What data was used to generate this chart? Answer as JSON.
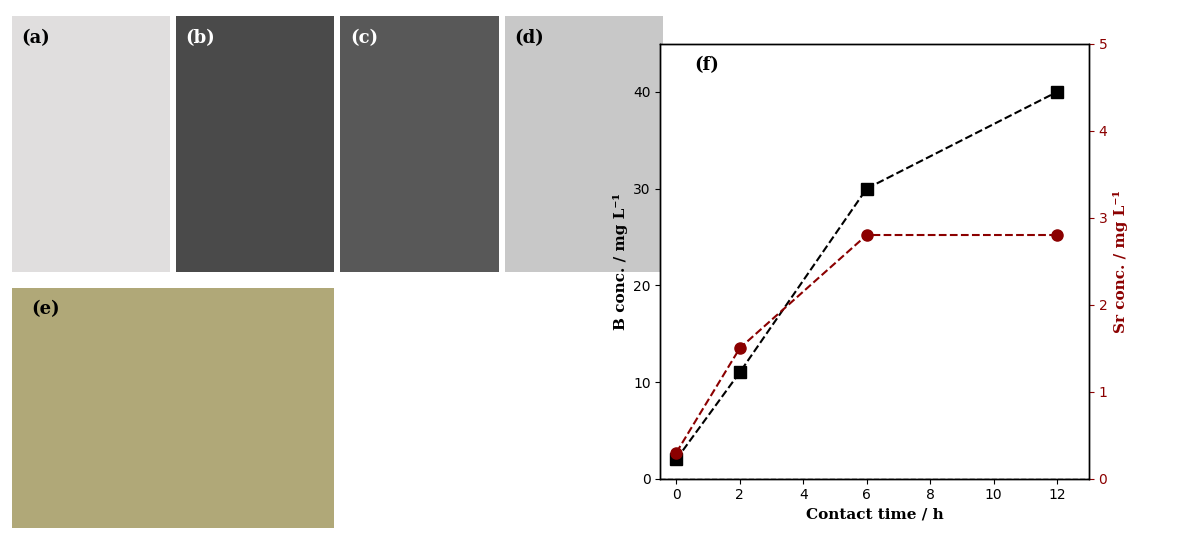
{
  "contact_time": [
    0,
    2,
    6,
    12
  ],
  "B_conc": [
    2.0,
    11.0,
    30.0,
    40.0
  ],
  "Sr_conc": [
    0.3,
    1.5,
    2.8,
    2.8
  ],
  "B_color": "#000000",
  "Sr_color": "#8B0000",
  "line_style": "--",
  "B_marker": "s",
  "Sr_marker": "o",
  "xlabel": "Contact time / h",
  "ylabel_left": "B conc. / mg L⁻¹",
  "ylabel_right": "Sr conc. / mg L⁻¹",
  "xlim": [
    -0.5,
    13
  ],
  "ylim_left": [
    0,
    45
  ],
  "ylim_right": [
    0,
    5
  ],
  "yticks_left": [
    0,
    10,
    20,
    30,
    40
  ],
  "yticks_right": [
    0,
    1,
    2,
    3,
    4,
    5
  ],
  "xticks": [
    0,
    2,
    4,
    6,
    8,
    10,
    12
  ],
  "panel_label_f": "(f)",
  "background_color": "#ffffff",
  "marker_size": 8,
  "line_width": 1.5,
  "font_size_label": 11,
  "font_size_tick": 10,
  "font_size_panel": 13,
  "panel_a_bg": "#e0dede",
  "panel_b_bg": "#4a4a4a",
  "panel_c_bg": "#585858",
  "panel_d_bg": "#c8c8c8",
  "panel_e_bg": "#b0a878"
}
